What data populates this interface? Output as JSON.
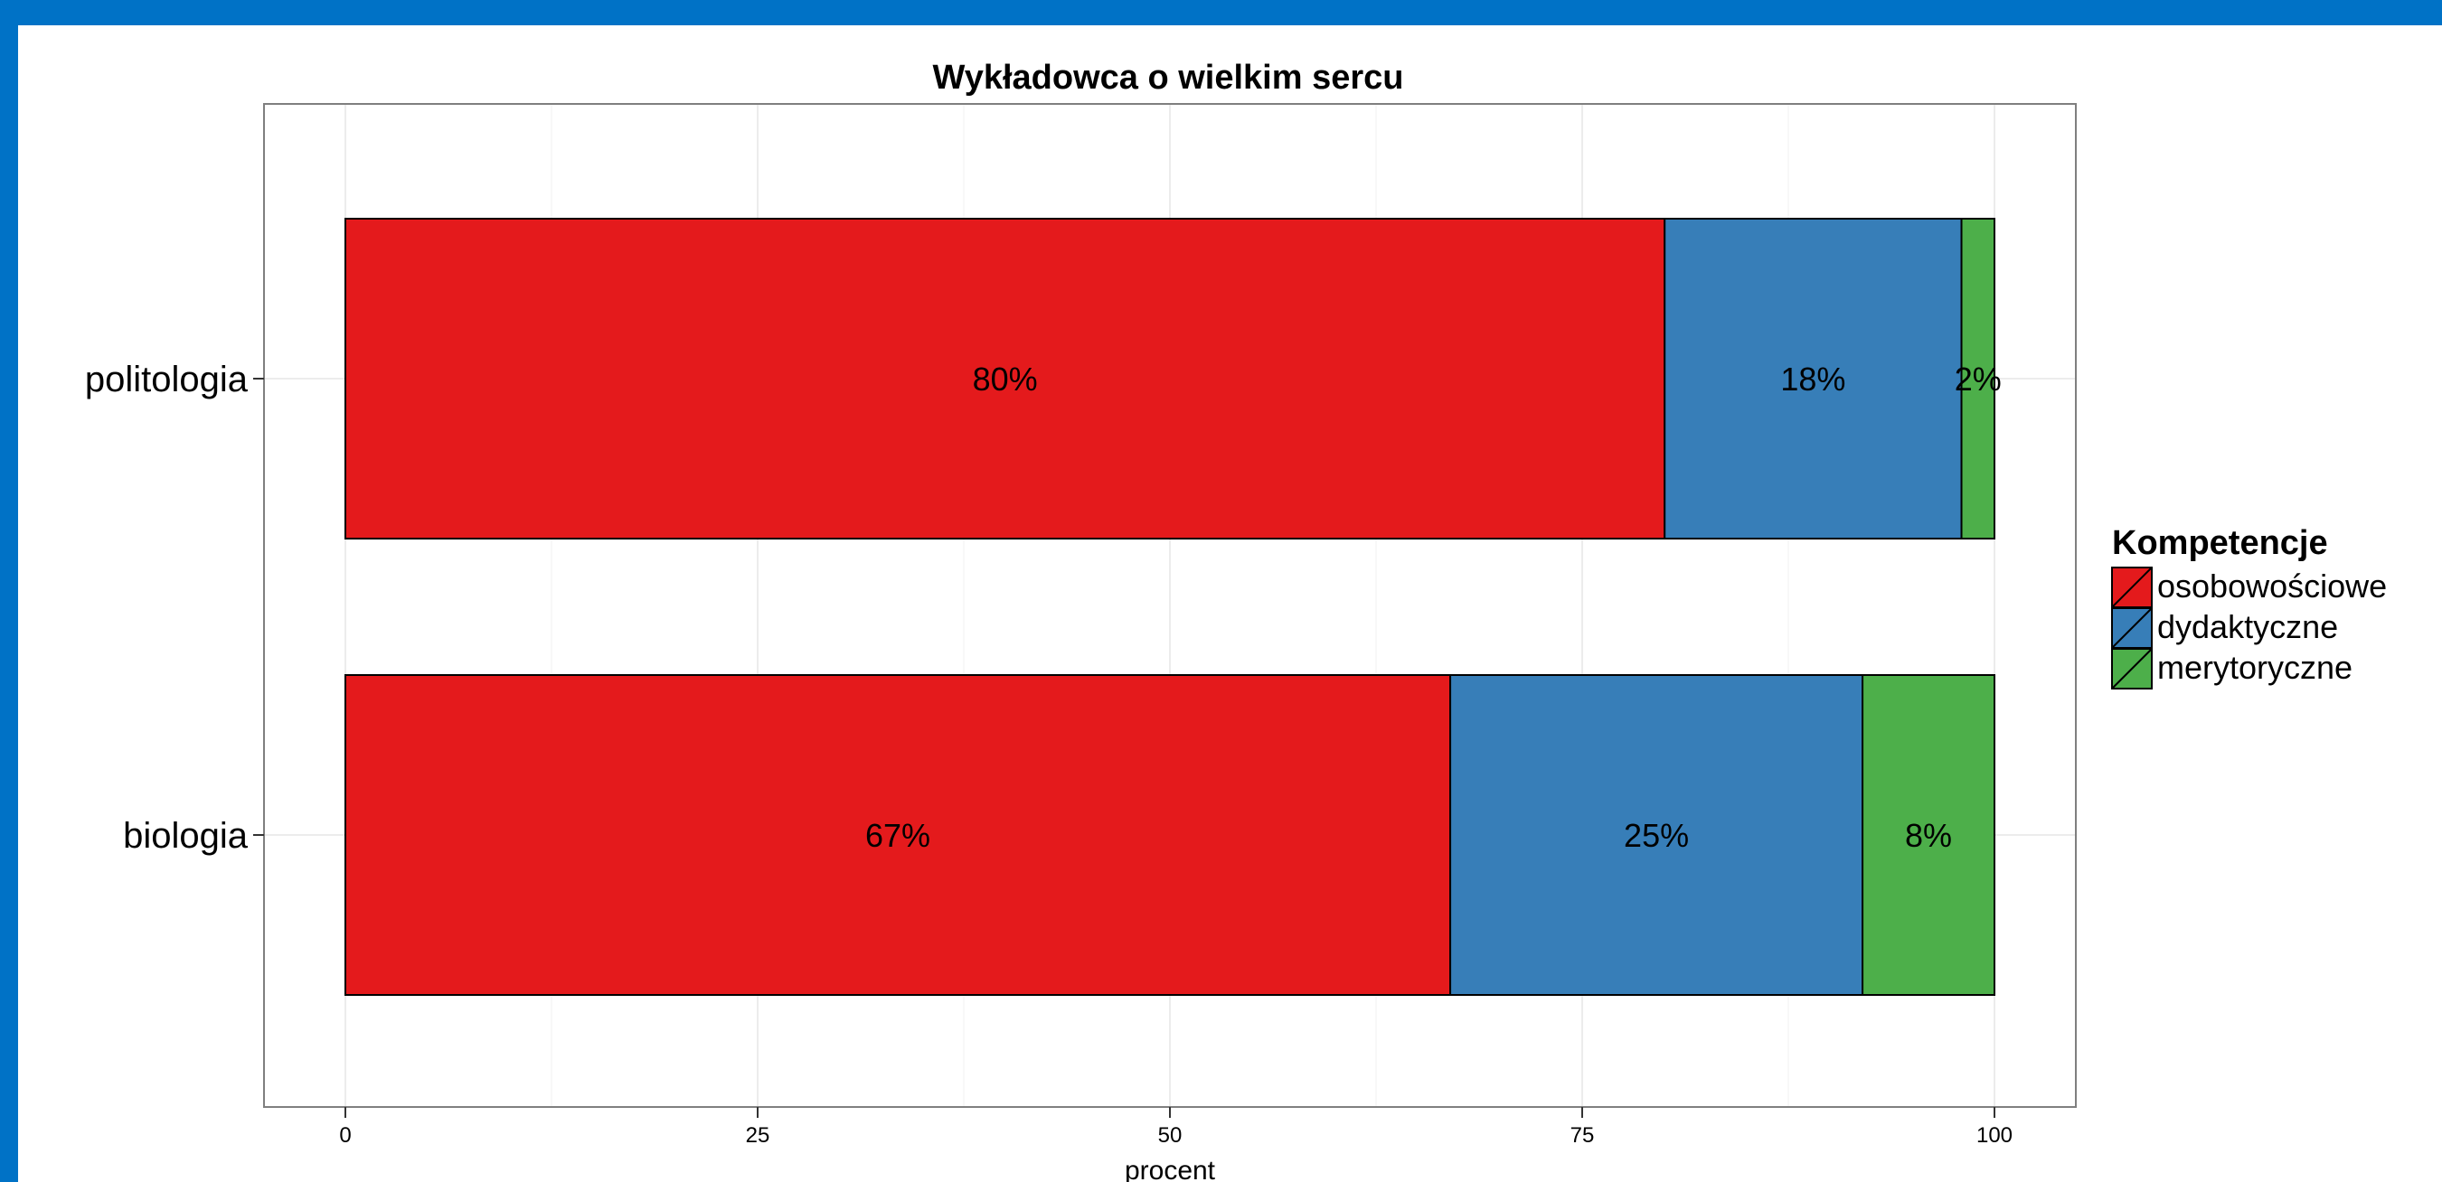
{
  "chart_data": {
    "type": "bar",
    "orientation": "horizontal",
    "stacked": true,
    "title": "Wykładowca o wielkim sercu",
    "xlabel": "procent",
    "ylabel": "",
    "xlim": [
      -10,
      210
    ],
    "xticks": [
      0,
      25,
      50,
      75,
      100
    ],
    "xtick_labels": [
      "0",
      "25",
      "50",
      "75",
      "100"
    ],
    "categories": [
      "politologia",
      "biologia"
    ],
    "series": [
      {
        "name": "osobowościowe",
        "color": "#e41a1c",
        "values": [
          80,
          67
        ],
        "labels": [
          "80%",
          "67%"
        ]
      },
      {
        "name": "dydaktyczne",
        "color": "#377eb8",
        "values": [
          18,
          25
        ],
        "labels": [
          "18%",
          "25%"
        ]
      },
      {
        "name": "merytoryczne",
        "color": "#4daf4a",
        "values": [
          2,
          8
        ],
        "labels": [
          "2%",
          "8%"
        ]
      }
    ],
    "legend": {
      "title": "Kompetencje",
      "position": "right"
    },
    "grid": true
  }
}
